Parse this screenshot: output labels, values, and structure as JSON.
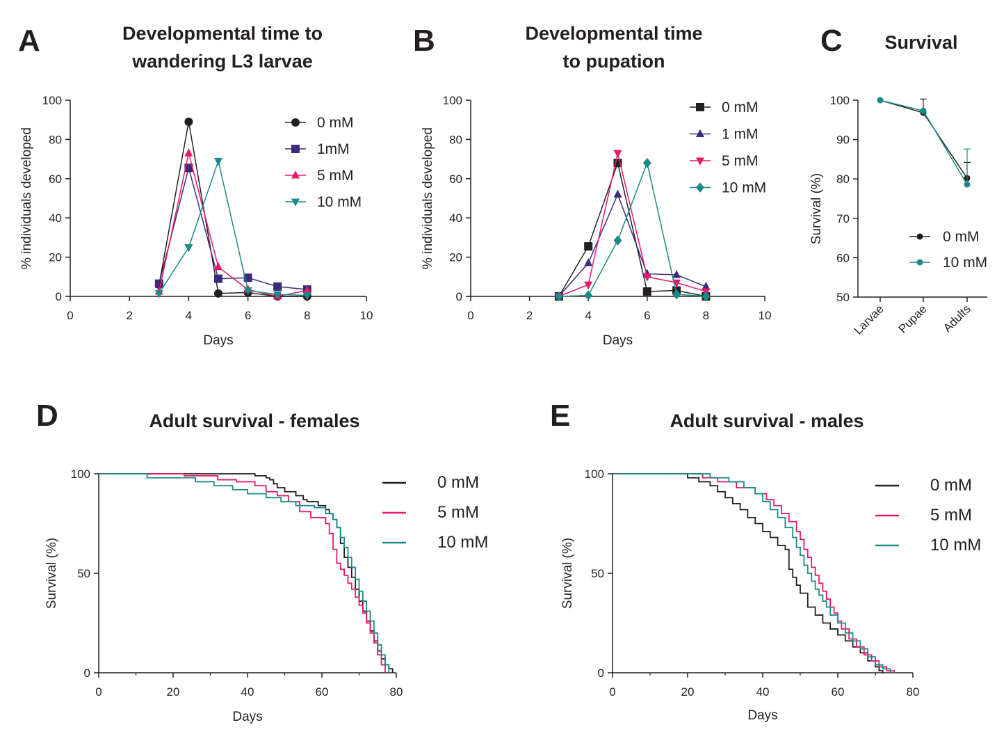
{
  "figure": {
    "colors": {
      "black": "#231f20",
      "purple": "#3d2a7a",
      "pink": "#e6196b",
      "teal": "#1a8a86"
    }
  },
  "chart_data": [
    {
      "panel": "A",
      "type": "line",
      "title": [
        "Developmental time to",
        "wandering L3 larvae"
      ],
      "xlabel": "Days",
      "ylabel": "% individuals developed",
      "xlim": [
        0,
        10
      ],
      "ylim": [
        0,
        100
      ],
      "xticks": [
        "0",
        "2",
        "4",
        "6",
        "8",
        "10"
      ],
      "yticks": [
        "0",
        "20",
        "40",
        "60",
        "80",
        "100"
      ],
      "legend_position": "top-right",
      "series": [
        {
          "name": "0 mM",
          "color": "#231f20",
          "marker": "circle",
          "x": [
            3,
            4,
            5,
            6,
            7,
            8
          ],
          "y": [
            6,
            89,
            1.5,
            2,
            0,
            0
          ]
        },
        {
          "name": "1mM",
          "color": "#3d2a7a",
          "marker": "square",
          "x": [
            3,
            4,
            5,
            6,
            7,
            8
          ],
          "y": [
            6.5,
            65.5,
            9,
            9.5,
            5,
            3.5
          ]
        },
        {
          "name": "5 mM",
          "color": "#e6196b",
          "marker": "triangle-up",
          "x": [
            3,
            4,
            5,
            6,
            7,
            8
          ],
          "y": [
            2.5,
            73,
            15,
            3.5,
            0,
            3
          ]
        },
        {
          "name": "10 mM",
          "color": "#1a8a86",
          "marker": "triangle-down",
          "x": [
            3,
            4,
            5,
            6,
            7,
            8
          ],
          "y": [
            1.5,
            25,
            69,
            3,
            1,
            0.5
          ]
        }
      ]
    },
    {
      "panel": "B",
      "type": "line",
      "title": [
        "Developmental time",
        "to pupation"
      ],
      "xlabel": "Days",
      "ylabel": "% individuals developed",
      "xlim": [
        0,
        10
      ],
      "ylim": [
        0,
        100
      ],
      "xticks": [
        "0",
        "2",
        "4",
        "6",
        "8",
        "10"
      ],
      "yticks": [
        "0",
        "20",
        "40",
        "60",
        "80",
        "100"
      ],
      "legend_position": "top-right",
      "series": [
        {
          "name": "0 mM",
          "color": "#231f20",
          "marker": "square",
          "x": [
            3,
            4,
            5,
            6,
            7,
            8
          ],
          "y": [
            0,
            25.5,
            68,
            2.5,
            3,
            0
          ]
        },
        {
          "name": "1 mM",
          "color": "#3d2a7a",
          "marker": "triangle-up",
          "x": [
            3,
            4,
            5,
            6,
            7,
            8
          ],
          "y": [
            0,
            17,
            52,
            11.5,
            11,
            5
          ]
        },
        {
          "name": "5 mM",
          "color": "#e6196b",
          "marker": "triangle-down",
          "x": [
            3,
            4,
            5,
            6,
            7,
            8
          ],
          "y": [
            0,
            6,
            73,
            10,
            7,
            2.5
          ]
        },
        {
          "name": "10 mM",
          "color": "#1a8a86",
          "marker": "diamond",
          "x": [
            3,
            4,
            5,
            6,
            7,
            8
          ],
          "y": [
            0,
            0.5,
            28.5,
            68,
            1,
            0
          ]
        }
      ]
    },
    {
      "panel": "C",
      "type": "line",
      "title": [
        "Survival"
      ],
      "xlabel": "",
      "ylabel": "Survival (%)",
      "ylim": [
        50,
        100
      ],
      "categories": [
        "Larvae",
        "Pupae",
        "Adults"
      ],
      "yticks": [
        "50",
        "60",
        "70",
        "80",
        "90",
        "100"
      ],
      "legend_position": "bottom-right",
      "series": [
        {
          "name": "0 mM",
          "color": "#231f20",
          "marker": "circle",
          "values": [
            100,
            96.8,
            80.2
          ],
          "error": [
            0,
            3.5,
            4
          ]
        },
        {
          "name": "10 mM",
          "color": "#1a8a86",
          "marker": "circle",
          "values": [
            100,
            97.3,
            78.6
          ],
          "error": [
            0,
            0,
            9
          ]
        }
      ]
    },
    {
      "panel": "D",
      "type": "line",
      "step": true,
      "title": [
        "Adult survival - females"
      ],
      "xlabel": "Days",
      "ylabel": "Survival (%)",
      "xlim": [
        0,
        80
      ],
      "ylim": [
        0,
        100
      ],
      "xticks": [
        "0",
        "20",
        "40",
        "60",
        "80"
      ],
      "yticks": [
        "0",
        "50",
        "100"
      ],
      "legend_position": "top-right",
      "series": [
        {
          "name": "0 mM",
          "color": "#231f20",
          "x": [
            0,
            42,
            45,
            46,
            47,
            48,
            50,
            53,
            55,
            56,
            59,
            61,
            62,
            63,
            64,
            65,
            66,
            67,
            68,
            69,
            70,
            71,
            72,
            73,
            74,
            75,
            76,
            77,
            78,
            79
          ],
          "y": [
            100,
            99,
            98,
            97,
            95,
            93,
            91,
            89,
            87,
            86,
            84,
            82,
            80,
            77,
            73,
            65,
            58,
            53,
            48,
            42,
            36,
            31,
            26,
            21,
            16,
            11,
            7,
            4,
            2,
            0
          ]
        },
        {
          "name": "5 mM",
          "color": "#e6196b",
          "x": [
            0,
            23,
            32,
            37,
            42,
            45,
            48,
            51,
            54,
            57,
            61,
            62,
            63,
            64,
            65,
            66,
            67,
            68,
            69,
            70,
            71,
            72,
            73,
            74,
            75,
            76,
            77
          ],
          "y": [
            100,
            99,
            97,
            96,
            94,
            91,
            89,
            86,
            81,
            78,
            75,
            70,
            62,
            55,
            52,
            49,
            45,
            42,
            38,
            34,
            30,
            25,
            20,
            15,
            9,
            4,
            0
          ]
        },
        {
          "name": "10 mM",
          "color": "#1a8a86",
          "x": [
            0,
            13,
            26,
            31,
            36,
            40,
            45,
            49,
            53,
            58,
            61,
            63,
            64,
            65,
            66,
            67,
            68,
            69,
            70,
            71,
            72,
            73,
            74,
            75,
            76,
            77,
            78
          ],
          "y": [
            100,
            98,
            96,
            94,
            92,
            90,
            88,
            86,
            84,
            83,
            80,
            77,
            73,
            68,
            63,
            58,
            53,
            47,
            41,
            36,
            31,
            26,
            20,
            14,
            9,
            4,
            0
          ]
        }
      ]
    },
    {
      "panel": "E",
      "type": "line",
      "step": true,
      "title": [
        "Adult survival - males"
      ],
      "xlabel": "Days",
      "ylabel": "Survival (%)",
      "xlim": [
        0,
        80
      ],
      "ylim": [
        0,
        100
      ],
      "xticks": [
        "0",
        "20",
        "40",
        "60",
        "80"
      ],
      "yticks": [
        "0",
        "50",
        "100"
      ],
      "legend_position": "top-right",
      "series": [
        {
          "name": "0 mM",
          "color": "#231f20",
          "x": [
            0,
            20,
            23,
            26,
            28,
            30,
            32,
            34,
            36,
            38,
            40,
            42,
            44,
            46,
            47,
            48,
            49,
            50,
            52,
            54,
            56,
            58,
            60,
            62,
            64,
            66,
            68,
            70,
            71,
            72
          ],
          "y": [
            100,
            98,
            96,
            94,
            91,
            88,
            85,
            82,
            78,
            75,
            71,
            68,
            64,
            62,
            52,
            48,
            44,
            40,
            33,
            29,
            25,
            22,
            19,
            16,
            13,
            10,
            6,
            3,
            1,
            0
          ]
        },
        {
          "name": "5 mM",
          "color": "#e6196b",
          "x": [
            0,
            24,
            28,
            33,
            38,
            41,
            43,
            45,
            47,
            49,
            50,
            51,
            52,
            53,
            54,
            55,
            56,
            57,
            58,
            59,
            60,
            61,
            63,
            65,
            67,
            69,
            71,
            73,
            75
          ],
          "y": [
            100,
            98,
            96,
            93,
            90,
            87,
            84,
            80,
            76,
            71,
            67,
            62,
            58,
            53,
            49,
            45,
            41,
            37,
            33,
            30,
            26,
            22,
            17,
            13,
            9,
            6,
            3,
            1,
            0
          ]
        },
        {
          "name": "10 mM",
          "color": "#1a8a86",
          "x": [
            0,
            26,
            31,
            35,
            38,
            40,
            42,
            44,
            46,
            48,
            49,
            50,
            51,
            52,
            53,
            54,
            55,
            56,
            57,
            58,
            60,
            62,
            64,
            66,
            68,
            70,
            72,
            74
          ],
          "y": [
            100,
            98,
            96,
            93,
            90,
            86,
            82,
            78,
            73,
            68,
            63,
            59,
            54,
            50,
            46,
            42,
            39,
            36,
            33,
            29,
            25,
            20,
            16,
            12,
            8,
            4,
            2,
            0
          ]
        }
      ]
    }
  ]
}
